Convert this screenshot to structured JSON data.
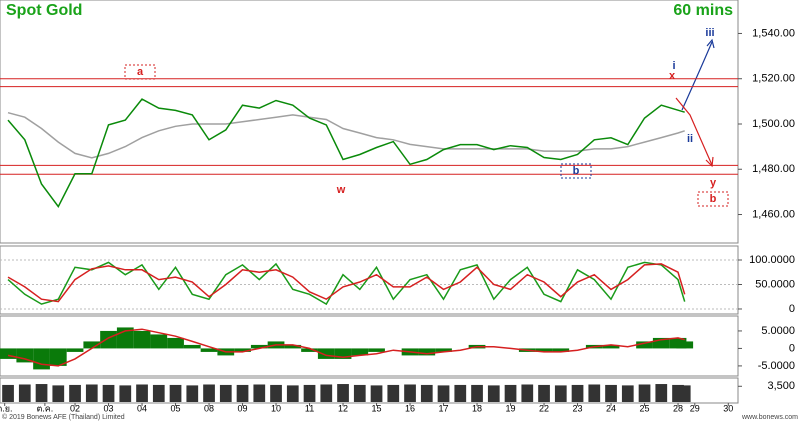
{
  "chart_data": [
    {
      "type": "line",
      "title": "Spot Gold",
      "timeframe": "60 mins",
      "x": [
        -2.0,
        -1.5,
        -1.0,
        -0.5,
        0,
        0.5,
        1.0,
        1.5,
        2.0,
        2.5,
        3.0,
        3.5,
        4.0,
        4.5,
        5.0,
        5.5,
        6.0,
        6.5,
        7.0,
        7.5,
        8.0,
        8.5,
        9.0,
        9.5,
        10.0,
        10.5,
        11.0,
        11.5,
        12.0,
        12.5,
        13.0,
        13.5,
        14.0,
        14.5,
        15.0,
        15.5,
        16.0,
        16.5,
        17.0,
        17.5,
        18.0,
        18.2
      ],
      "xlim": [
        -2.24,
        19.79
      ],
      "series": [
        {
          "color": "#a0a0a0",
          "values": [
            1505,
            1503,
            1498,
            1492,
            1487,
            1485,
            1487,
            1490,
            1494,
            1497,
            1499,
            1500,
            1500,
            1500,
            1501,
            1502,
            1503,
            1504,
            1503,
            1502,
            1498,
            1496,
            1494,
            1493,
            1491,
            1490,
            1489,
            1489,
            1489,
            1489,
            1489,
            1489,
            1488,
            1488,
            1488,
            1489,
            1489,
            1490,
            1492,
            1494,
            1496,
            1497
          ]
        },
        {
          "color": "#0a8a0a",
          "values": [
            1501.7,
            1493,
            1473.5,
            1463.5,
            1478,
            1478,
            1499.6,
            1501.7,
            1511,
            1507,
            1506,
            1504,
            1493,
            1497.4,
            1508.3,
            1507,
            1510.4,
            1508.3,
            1502.6,
            1499.6,
            1484.3,
            1486.5,
            1489.6,
            1492.2,
            1482.2,
            1484.3,
            1488.7,
            1490.9,
            1490.9,
            1488.7,
            1490.4,
            1489.6,
            1485.2,
            1484.3,
            1486.5,
            1493,
            1493.9,
            1490.9,
            1502.6,
            1508.3,
            1506.1,
            1505.2
          ]
        }
      ],
      "levels": [
        1520,
        1516.5,
        1481.7,
        1477.8
      ],
      "level_color": "#d62020",
      "ylim": [
        1448.3,
        1553.9
      ],
      "yticks": [
        {
          "value": 1540,
          "label": "1,540.00"
        },
        {
          "value": 1520,
          "label": "1,520.00"
        },
        {
          "value": 1500,
          "label": "1,500.00"
        },
        {
          "value": 1480,
          "label": "1,480.00"
        },
        {
          "value": 1460,
          "label": "1,460.00"
        }
      ],
      "annotations": [
        "a",
        "w",
        "b",
        "i",
        "x",
        "iii",
        "ii",
        "y",
        "b"
      ]
    },
    {
      "type": "line",
      "series": [
        {
          "color": "#1a9a1a",
          "values": [
            60,
            30,
            10,
            20,
            85,
            80,
            95,
            70,
            90,
            40,
            85,
            30,
            20,
            70,
            90,
            60,
            92,
            40,
            30,
            10,
            70,
            40,
            85,
            20,
            60,
            70,
            20,
            80,
            90,
            20,
            60,
            85,
            30,
            15,
            80,
            60,
            20,
            85,
            95,
            90,
            60,
            15
          ]
        },
        {
          "color": "#d62020",
          "values": [
            65,
            45,
            20,
            15,
            60,
            82,
            88,
            80,
            80,
            60,
            65,
            55,
            25,
            50,
            80,
            75,
            80,
            65,
            35,
            20,
            45,
            55,
            70,
            45,
            45,
            65,
            40,
            55,
            85,
            50,
            40,
            70,
            55,
            25,
            55,
            70,
            40,
            60,
            90,
            92,
            75,
            30
          ]
        }
      ],
      "ylim": [
        -8.2,
        124.5
      ],
      "yticks": [
        {
          "value": 100,
          "label": "100.0000"
        },
        {
          "value": 50,
          "label": "50.0000"
        },
        0
      ],
      "grid": true
    },
    {
      "type": "macd",
      "values": [
        -3,
        -4,
        -6,
        -5,
        -1,
        2,
        5,
        6,
        5,
        4,
        3,
        1,
        -1,
        -2,
        -1,
        1,
        2,
        1,
        -1,
        -3,
        -3,
        -2,
        -1,
        0,
        -2,
        -2,
        -1,
        0,
        1,
        0,
        0,
        -1,
        -1,
        -1,
        0,
        1,
        1,
        0,
        2,
        3,
        3,
        2
      ],
      "color": "#0a7a0a",
      "signal": [
        -2,
        -3,
        -4.5,
        -5,
        -3,
        0,
        3,
        5,
        5.5,
        4.5,
        3.5,
        2,
        0.5,
        -1,
        -1,
        0,
        1,
        1,
        0,
        -2,
        -2.5,
        -2,
        -1.5,
        -0.5,
        -1,
        -1.5,
        -1,
        -0.5,
        0.5,
        0.5,
        0,
        -0.5,
        -1,
        -1,
        -0.5,
        0.5,
        1,
        0.5,
        1.5,
        2.5,
        3,
        2.5
      ],
      "signal_color": "#d62020",
      "ylim": [
        -7.6,
        8.7
      ],
      "yticks": [
        {
          "value": 5,
          "label": "5.0000"
        },
        0,
        {
          "value": -5,
          "label": "-5.0000"
        }
      ]
    },
    {
      "type": "bar",
      "values": [
        3800,
        3900,
        4000,
        3700,
        3800,
        3900,
        3800,
        3700,
        3900,
        3800,
        3800,
        3700,
        3900,
        3800,
        3800,
        3900,
        3800,
        3700,
        3800,
        3900,
        4000,
        3800,
        3700,
        3800,
        3900,
        3800,
        3700,
        3800,
        3800,
        3700,
        3800,
        3900,
        3800,
        3700,
        3800,
        3900,
        3800,
        3700,
        3900,
        4000,
        3800,
        3700
      ],
      "color": "#333333",
      "ylim": [
        0,
        4900
      ],
      "yticks": [
        {
          "value": 3500,
          "label": "3,500"
        }
      ],
      "xticks": [
        {
          "value": -2.1,
          "label": "ก.ย."
        },
        {
          "value": -0.9,
          "label": "ต.ค."
        },
        {
          "value": 0,
          "label": "02"
        },
        {
          "value": 1,
          "label": "03"
        },
        {
          "value": 2,
          "label": "04"
        },
        {
          "value": 3,
          "label": "05"
        },
        {
          "value": 4,
          "label": "08"
        },
        {
          "value": 5,
          "label": "09"
        },
        {
          "value": 6,
          "label": "10"
        },
        {
          "value": 7,
          "label": "11"
        },
        {
          "value": 8,
          "label": "12"
        },
        {
          "value": 9,
          "label": "15"
        },
        {
          "value": 10,
          "label": "16"
        },
        {
          "value": 11,
          "label": "17"
        },
        {
          "value": 12,
          "label": "18"
        },
        {
          "value": 13,
          "label": "19"
        },
        {
          "value": 14,
          "label": "22"
        },
        {
          "value": 15,
          "label": "23"
        },
        {
          "value": 16,
          "label": "24"
        },
        {
          "value": 17,
          "label": "25"
        },
        {
          "value": 18,
          "label": "28"
        },
        {
          "value": 18.5,
          "label": "29"
        },
        {
          "value": 19.5,
          "label": "30"
        }
      ]
    }
  ],
  "footer": {
    "copyright": "© 2019 Bonews AFE (Thailand) Limited",
    "website": "www.bonews.com"
  }
}
